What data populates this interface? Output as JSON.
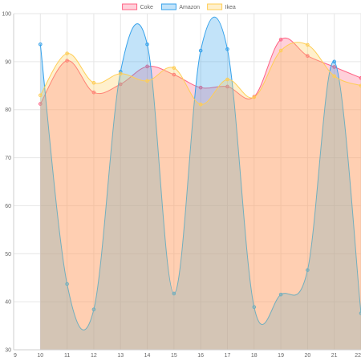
{
  "chart_data": {
    "type": "area",
    "title": "",
    "xlabel": "",
    "ylabel": "",
    "xlim": [
      9,
      22
    ],
    "ylim": [
      30,
      100
    ],
    "x_ticks": [
      "9",
      "10",
      "11",
      "12",
      "13",
      "14",
      "15",
      "16",
      "17",
      "18",
      "19",
      "20",
      "21",
      "22"
    ],
    "y_ticks": [
      "30",
      "40",
      "50",
      "60",
      "70",
      "80",
      "90",
      "100"
    ],
    "grid": true,
    "legend_position": "top-center",
    "series": [
      {
        "name": "Coke",
        "color": "#ff6384",
        "fill": "rgba(255,99,132,0.3)",
        "x": [
          10,
          11,
          12,
          13,
          14,
          15,
          16,
          17,
          18,
          19,
          20,
          21,
          22
        ],
        "values": [
          81.2,
          90.2,
          83.6,
          85.3,
          89.0,
          87.3,
          84.6,
          84.8,
          82.7,
          94.6,
          91.2,
          88.9,
          86.6
        ]
      },
      {
        "name": "Amazon",
        "color": "#36a2eb",
        "fill": "rgba(54,162,235,0.3)",
        "x": [
          10,
          11,
          12,
          13,
          14,
          15,
          16,
          17,
          18,
          19,
          20,
          21,
          22
        ],
        "values": [
          93.6,
          43.7,
          38.4,
          87.9,
          93.6,
          41.7,
          92.3,
          92.6,
          38.9,
          41.5,
          46.6,
          90.0,
          37.6
        ]
      },
      {
        "name": "Ikea",
        "color": "#ffce56",
        "fill": "rgba(255,206,86,0.3)",
        "x": [
          10,
          11,
          12,
          13,
          14,
          15,
          16,
          17,
          18,
          19,
          20,
          21,
          22
        ],
        "values": [
          83.0,
          91.7,
          85.6,
          87.5,
          86.0,
          88.7,
          81.1,
          86.3,
          82.6,
          92.3,
          93.5,
          87.0,
          85.0
        ]
      }
    ]
  }
}
